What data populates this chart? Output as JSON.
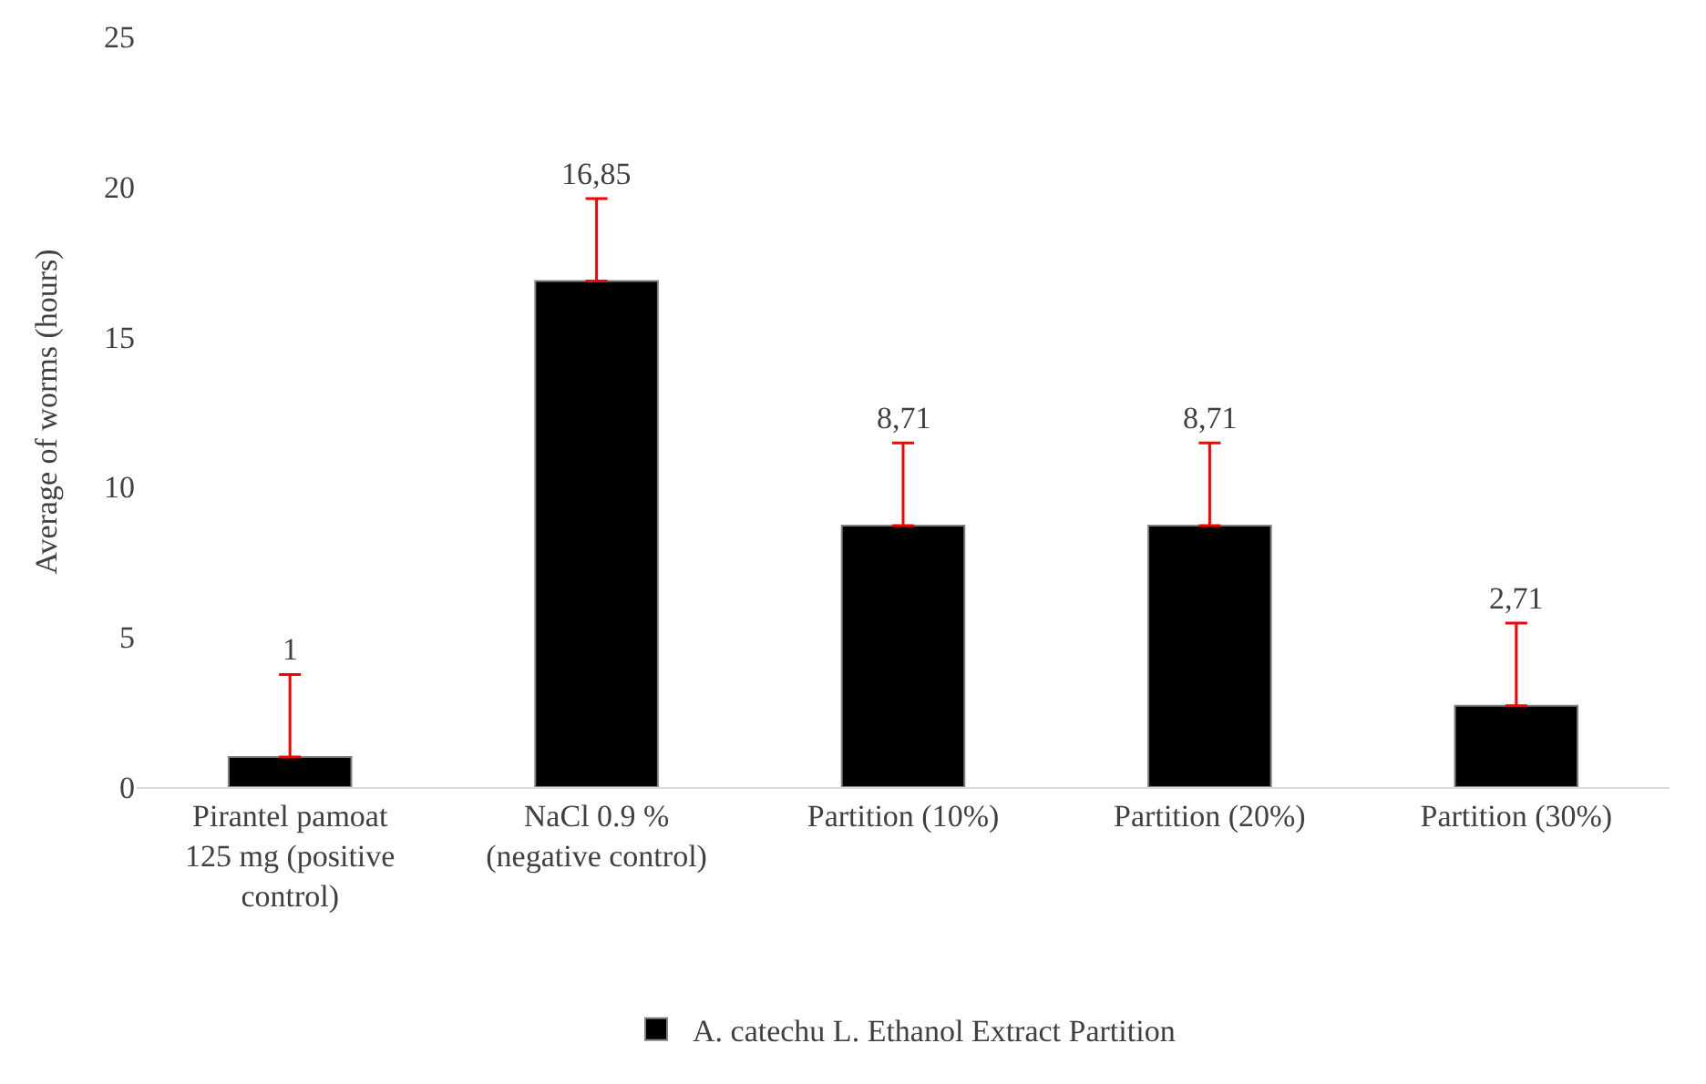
{
  "chart_data": {
    "type": "bar",
    "ylabel": "Average of worms (hours)",
    "categories": [
      "Pirantel pamoat 125 mg (positive control)",
      "NaCl 0.9 % (negative control)",
      "Partition (10%)",
      "Partition (20%)",
      "Partition (30%)"
    ],
    "series": [
      {
        "name": "A. catechu L. Ethanol Extract Partition",
        "color": "#000000",
        "values": [
          1,
          16.85,
          8.71,
          8.71,
          2.71
        ],
        "value_labels": [
          "1",
          "16,85",
          "8,71",
          "8,71",
          "2,71"
        ],
        "errors": [
          [
            1,
            3.75
          ],
          [
            16.85,
            19.6
          ],
          [
            8.71,
            11.46
          ],
          [
            8.71,
            11.46
          ],
          [
            2.71,
            5.46
          ]
        ]
      }
    ],
    "ylim": [
      0,
      25
    ],
    "yticks": [
      0,
      5,
      10,
      15,
      20,
      25
    ],
    "grid": false,
    "legend": "bottom"
  }
}
